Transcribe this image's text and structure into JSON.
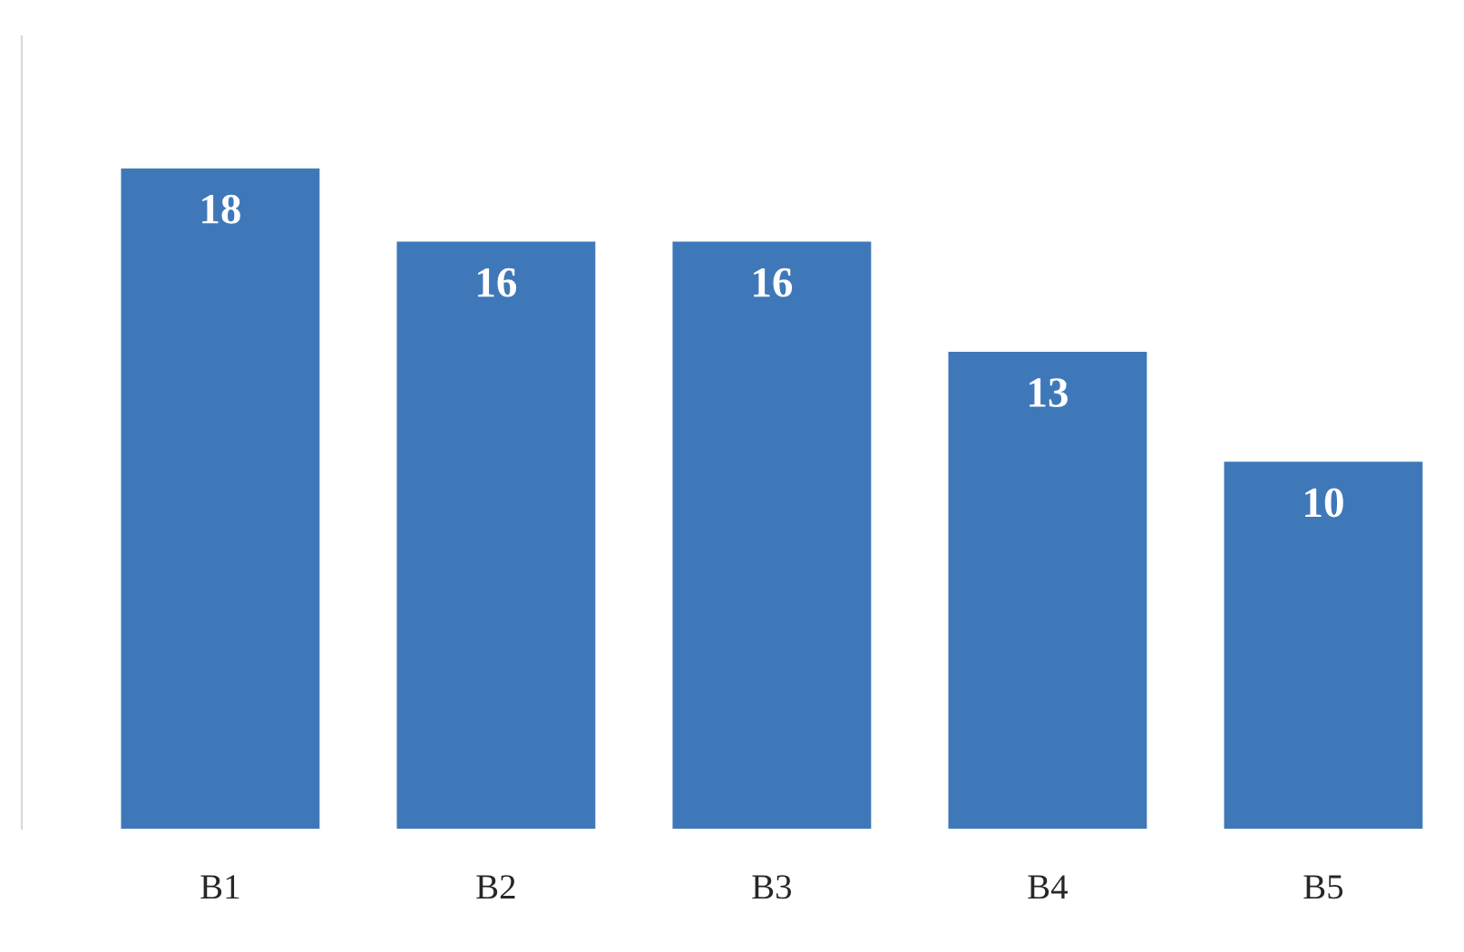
{
  "chart_data": {
    "type": "bar",
    "categories": [
      "B1",
      "B2",
      "B3",
      "B4",
      "B5"
    ],
    "values": [
      18,
      16,
      16,
      13,
      10
    ],
    "color": "#3f78b8",
    "data_labels": true,
    "grid": false,
    "legend": false
  }
}
